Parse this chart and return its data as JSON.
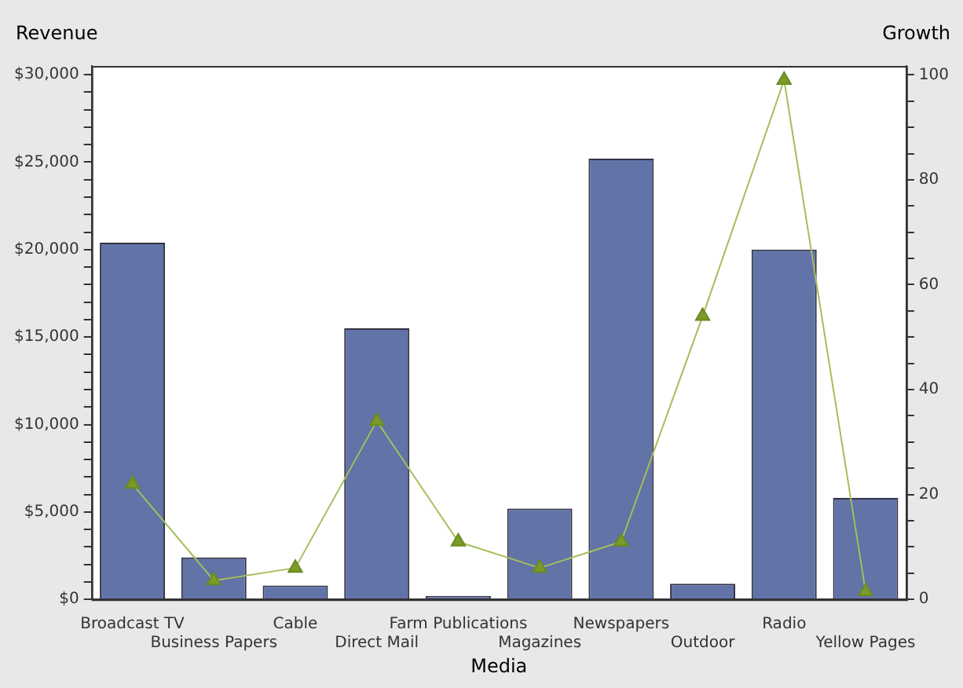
{
  "chart_data": {
    "type": "bar",
    "xlabel": "Media",
    "ylabel": "Revenue",
    "y2label": "Growth",
    "categories": [
      "Broadcast TV",
      "Business Papers",
      "Cable",
      "Direct Mail",
      "Farm Publications",
      "Magazines",
      "Newspapers",
      "Outdoor",
      "Radio",
      "Yellow Pages"
    ],
    "series": [
      {
        "color": "#6273a8",
        "values": [
          20400,
          2400,
          800,
          15500,
          200,
          5200,
          25200,
          900,
          20000,
          5800
        ]
      },
      {
        "type": "line",
        "axis": "y2",
        "color": "#a4be5a",
        "marker": "triangle",
        "values": [
          22,
          3.6,
          6,
          34,
          11,
          6,
          11,
          54,
          99,
          1.5
        ]
      }
    ],
    "ylim": [
      0,
      30500
    ],
    "yticks": [
      {
        "value": 0,
        "label": "$0"
      },
      {
        "value": 1000,
        "label": null
      },
      {
        "value": 2000,
        "label": null
      },
      {
        "value": 3000,
        "label": null
      },
      {
        "value": 4000,
        "label": null
      },
      {
        "value": 5000,
        "label": "$5,000"
      },
      {
        "value": 6000,
        "label": null
      },
      {
        "value": 7000,
        "label": null
      },
      {
        "value": 8000,
        "label": null
      },
      {
        "value": 9000,
        "label": null
      },
      {
        "value": 10000,
        "label": "$10,000"
      },
      {
        "value": 11000,
        "label": null
      },
      {
        "value": 12000,
        "label": null
      },
      {
        "value": 13000,
        "label": null
      },
      {
        "value": 14000,
        "label": null
      },
      {
        "value": 15000,
        "label": "$15,000"
      },
      {
        "value": 16000,
        "label": null
      },
      {
        "value": 17000,
        "label": null
      },
      {
        "value": 18000,
        "label": null
      },
      {
        "value": 19000,
        "label": null
      },
      {
        "value": 20000,
        "label": "$20,000"
      },
      {
        "value": 21000,
        "label": null
      },
      {
        "value": 22000,
        "label": null
      },
      {
        "value": 23000,
        "label": null
      },
      {
        "value": 24000,
        "label": null
      },
      {
        "value": 25000,
        "label": "$25,000"
      },
      {
        "value": 26000,
        "label": null
      },
      {
        "value": 27000,
        "label": null
      },
      {
        "value": 28000,
        "label": null
      },
      {
        "value": 29000,
        "label": null
      },
      {
        "value": 30000,
        "label": "$30,000"
      }
    ],
    "y2lim": [
      0,
      101.7
    ],
    "y2ticks": [
      0,
      {
        "value": 5,
        "label": null
      },
      {
        "value": 10,
        "label": null
      },
      {
        "value": 15,
        "label": null
      },
      20,
      {
        "value": 25,
        "label": null
      },
      {
        "value": 30,
        "label": null
      },
      {
        "value": 35,
        "label": null
      },
      40,
      {
        "value": 45,
        "label": null
      },
      {
        "value": 50,
        "label": null
      },
      {
        "value": 55,
        "label": null
      },
      60,
      {
        "value": 65,
        "label": null
      },
      {
        "value": 70,
        "label": null
      },
      {
        "value": 75,
        "label": null
      },
      80,
      {
        "value": 85,
        "label": null
      },
      {
        "value": 90,
        "label": null
      },
      {
        "value": 95,
        "label": null
      },
      100
    ],
    "grid": false,
    "legend": false,
    "line_style": "solid"
  }
}
